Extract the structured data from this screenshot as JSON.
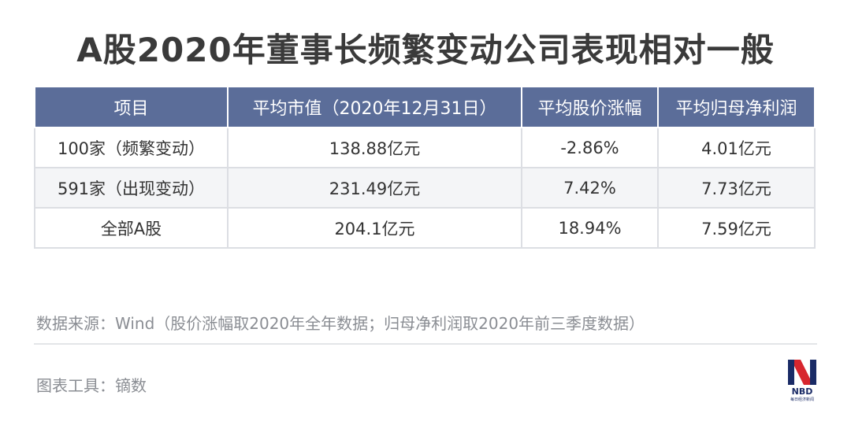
{
  "title": "A股2020年董事长频繁变动公司表现相对一般",
  "table": {
    "headers": [
      "项目",
      "平均市值（2020年12月31日）",
      "平均股价涨幅",
      "平均归母净利润"
    ],
    "rows": [
      [
        "100家（频繁变动）",
        "138.88亿元",
        "-2.86%",
        "4.01亿元"
      ],
      [
        "591家（出现变动）",
        "231.49亿元",
        "7.42%",
        "7.73亿元"
      ],
      [
        "全部A股",
        "204.1亿元",
        "18.94%",
        "7.59亿元"
      ]
    ]
  },
  "source": "数据来源：Wind（股价涨幅取2020年全年数据；归母净利润取2020年前三季度数据）",
  "tool": "图表工具：镝数",
  "logo": {
    "text": "NBD",
    "subtext": "每日经济新闻",
    "colors": {
      "blue": "#1a2b66",
      "red": "#d7262e"
    }
  }
}
